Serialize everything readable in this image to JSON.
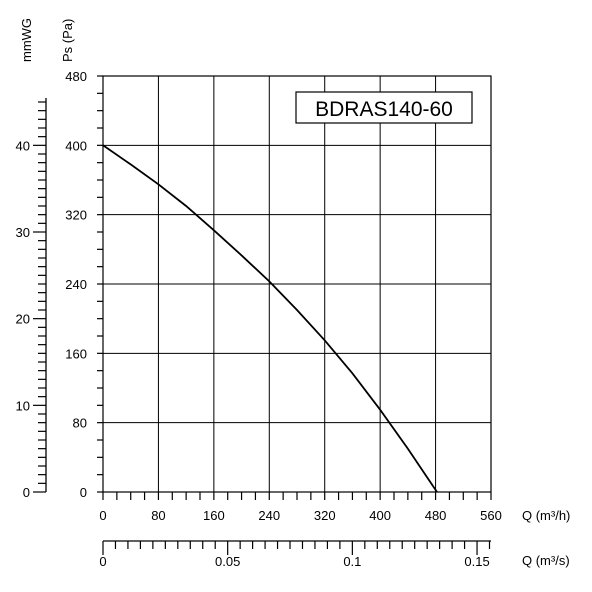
{
  "chart_data": {
    "type": "line",
    "model": "BDRAS140-60",
    "left_axis_pa": {
      "label": "Ps (Pa)",
      "ticks": [
        "0",
        "80",
        "160",
        "240",
        "320",
        "400",
        "480"
      ],
      "range": [
        0,
        480
      ]
    },
    "left_axis_mmwg": {
      "label": "mmWG",
      "ticks": [
        "0",
        "10",
        "20",
        "30",
        "40"
      ],
      "range": [
        0,
        48
      ]
    },
    "bottom_axis_m3h": {
      "label": "Q (m³/h)",
      "ticks": [
        "0",
        "80",
        "160",
        "240",
        "320",
        "400",
        "480",
        "560"
      ],
      "range": [
        0,
        560
      ]
    },
    "bottom_axis_m3s": {
      "label": "Q (m³/s)",
      "ticks": [
        "0",
        "0.05",
        "0.1",
        "0.15"
      ],
      "range": [
        0,
        0.1556
      ]
    },
    "grid": true,
    "series": [
      {
        "x": [
          0,
          40,
          80,
          120,
          160,
          200,
          240,
          280,
          320,
          360,
          400,
          440,
          482
        ],
        "y": [
          400,
          378,
          355,
          330,
          302,
          273,
          243,
          210,
          175,
          137,
          95,
          50,
          0
        ]
      }
    ]
  }
}
